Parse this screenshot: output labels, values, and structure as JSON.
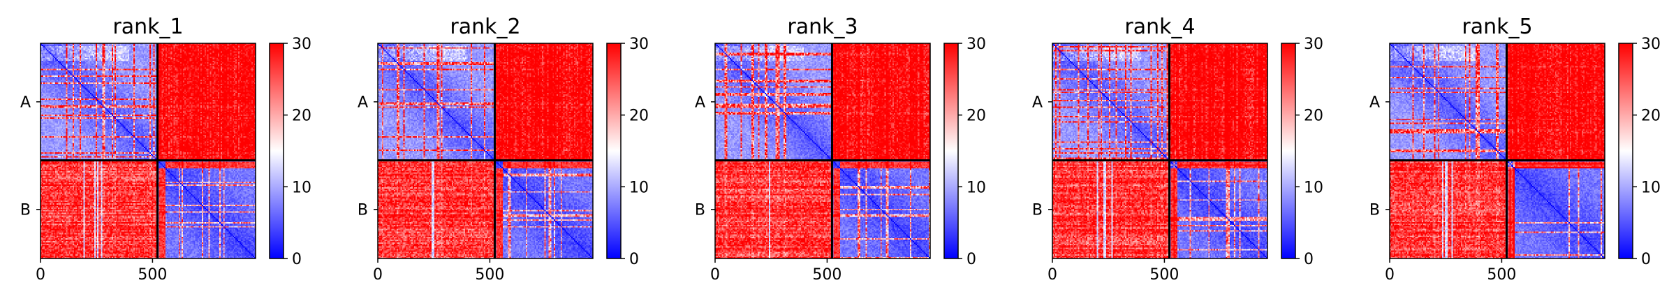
{
  "chart_data": {
    "type": "heatmap",
    "colormap": "bwr",
    "colors": {
      "low": "#0000ff",
      "mid": "#ffffff",
      "high": "#ff0000",
      "divider": "#000000"
    },
    "clim": [
      0,
      30
    ],
    "colorbar_ticks": [
      "0",
      "10",
      "20",
      "30"
    ],
    "chain_boundary": 522,
    "total_length": 960,
    "x_ticks": [
      {
        "value": 0,
        "label": "0"
      },
      {
        "value": 500,
        "label": "500"
      }
    ],
    "y_labels": [
      "A",
      "B"
    ],
    "panels": [
      {
        "title": "rank_1"
      },
      {
        "title": "rank_2"
      },
      {
        "title": "rank_3"
      },
      {
        "title": "rank_4"
      },
      {
        "title": "rank_5"
      }
    ]
  }
}
